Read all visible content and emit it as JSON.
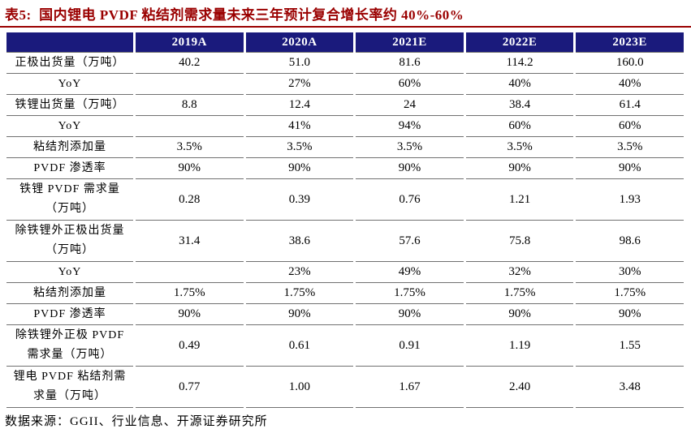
{
  "title": "表5:  国内锂电 PVDF 粘结剂需求量未来三年预计复合增长率约 40%-60%",
  "colors": {
    "title-red": "#9A0000",
    "header-navy": "#1A1A7C",
    "grid-line": "#707070",
    "header-text": "#FFFFFF",
    "text": "#000000"
  },
  "chart_data": {
    "type": "table",
    "title": "表5: 国内锂电 PVDF 粘结剂需求量未来三年预计复合增长率约 40%-60%",
    "columns": [
      "",
      "2019A",
      "2020A",
      "2021E",
      "2022E",
      "2023E"
    ],
    "rows": [
      {
        "label": "正极出货量（万吨）",
        "values": [
          "40.2",
          "51.0",
          "81.6",
          "114.2",
          "160.0"
        ]
      },
      {
        "label": "YoY",
        "values": [
          "",
          "27%",
          "60%",
          "40%",
          "40%"
        ]
      },
      {
        "label": "铁锂出货量（万吨）",
        "values": [
          "8.8",
          "12.4",
          "24",
          "38.4",
          "61.4"
        ]
      },
      {
        "label": "YoY",
        "values": [
          "",
          "41%",
          "94%",
          "60%",
          "60%"
        ]
      },
      {
        "label": "粘结剂添加量",
        "values": [
          "3.5%",
          "3.5%",
          "3.5%",
          "3.5%",
          "3.5%"
        ]
      },
      {
        "label": "PVDF 渗透率",
        "values": [
          "90%",
          "90%",
          "90%",
          "90%",
          "90%"
        ]
      },
      {
        "label": "铁锂 PVDF 需求量\n（万吨）",
        "values": [
          "0.28",
          "0.39",
          "0.76",
          "1.21",
          "1.93"
        ]
      },
      {
        "label": "除铁锂外正极出货量\n（万吨）",
        "values": [
          "31.4",
          "38.6",
          "57.6",
          "75.8",
          "98.6"
        ]
      },
      {
        "label": "YoY",
        "values": [
          "",
          "23%",
          "49%",
          "32%",
          "30%"
        ]
      },
      {
        "label": "粘结剂添加量",
        "values": [
          "1.75%",
          "1.75%",
          "1.75%",
          "1.75%",
          "1.75%"
        ]
      },
      {
        "label": "PVDF 渗透率",
        "values": [
          "90%",
          "90%",
          "90%",
          "90%",
          "90%"
        ]
      },
      {
        "label": "除铁锂外正极 PVDF\n需求量（万吨）",
        "values": [
          "0.49",
          "0.61",
          "0.91",
          "1.19",
          "1.55"
        ]
      },
      {
        "label": "锂电 PVDF 粘结剂需\n求量（万吨）",
        "values": [
          "0.77",
          "1.00",
          "1.67",
          "2.40",
          "3.48"
        ]
      }
    ]
  },
  "footer": {
    "source": "数据来源：GGII、行业信息、开源证券研究所"
  }
}
